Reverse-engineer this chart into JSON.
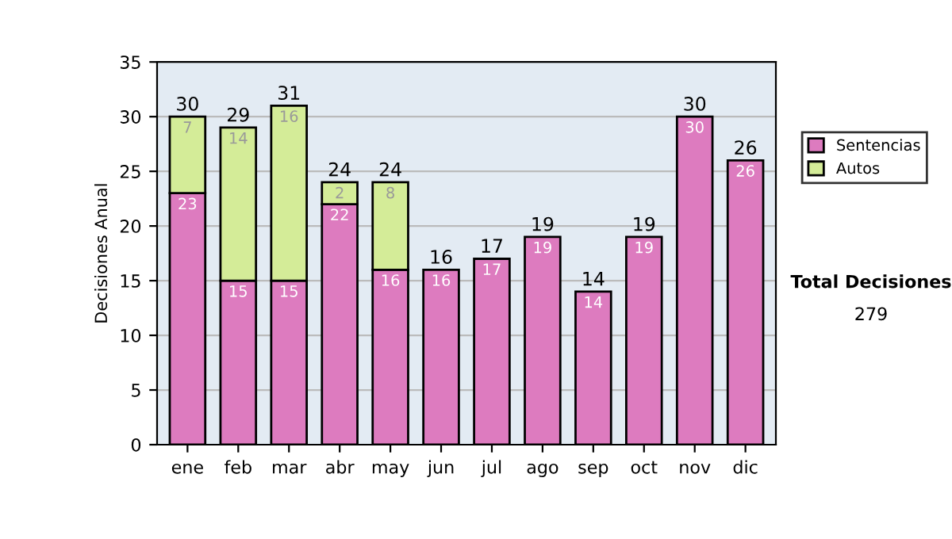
{
  "chart_data": {
    "type": "bar",
    "stacked": true,
    "ylabel": "Decisiones Anual",
    "categories": [
      "ene",
      "feb",
      "mar",
      "abr",
      "may",
      "jun",
      "jul",
      "ago",
      "sep",
      "oct",
      "nov",
      "dic"
    ],
    "series": [
      {
        "name": "Sentencias",
        "color": "#dd7bbf",
        "values": [
          23,
          15,
          15,
          22,
          16,
          16,
          17,
          19,
          14,
          19,
          30,
          26
        ]
      },
      {
        "name": "Autos",
        "color": "#d4ec98",
        "values": [
          7,
          14,
          16,
          2,
          8,
          null,
          null,
          null,
          null,
          null,
          null,
          null
        ]
      }
    ],
    "totals": [
      "30",
      "29",
      "31",
      "24",
      "24",
      "16",
      "17",
      "19",
      "14",
      "19",
      "30",
      "26"
    ],
    "data_labels": true,
    "ylim": [
      0,
      35
    ],
    "yticks": [
      0,
      5,
      10,
      15,
      20,
      25,
      30,
      35
    ],
    "grid": "y",
    "legend": "right",
    "annotations": [
      "Total Decisiones",
      "279"
    ]
  }
}
